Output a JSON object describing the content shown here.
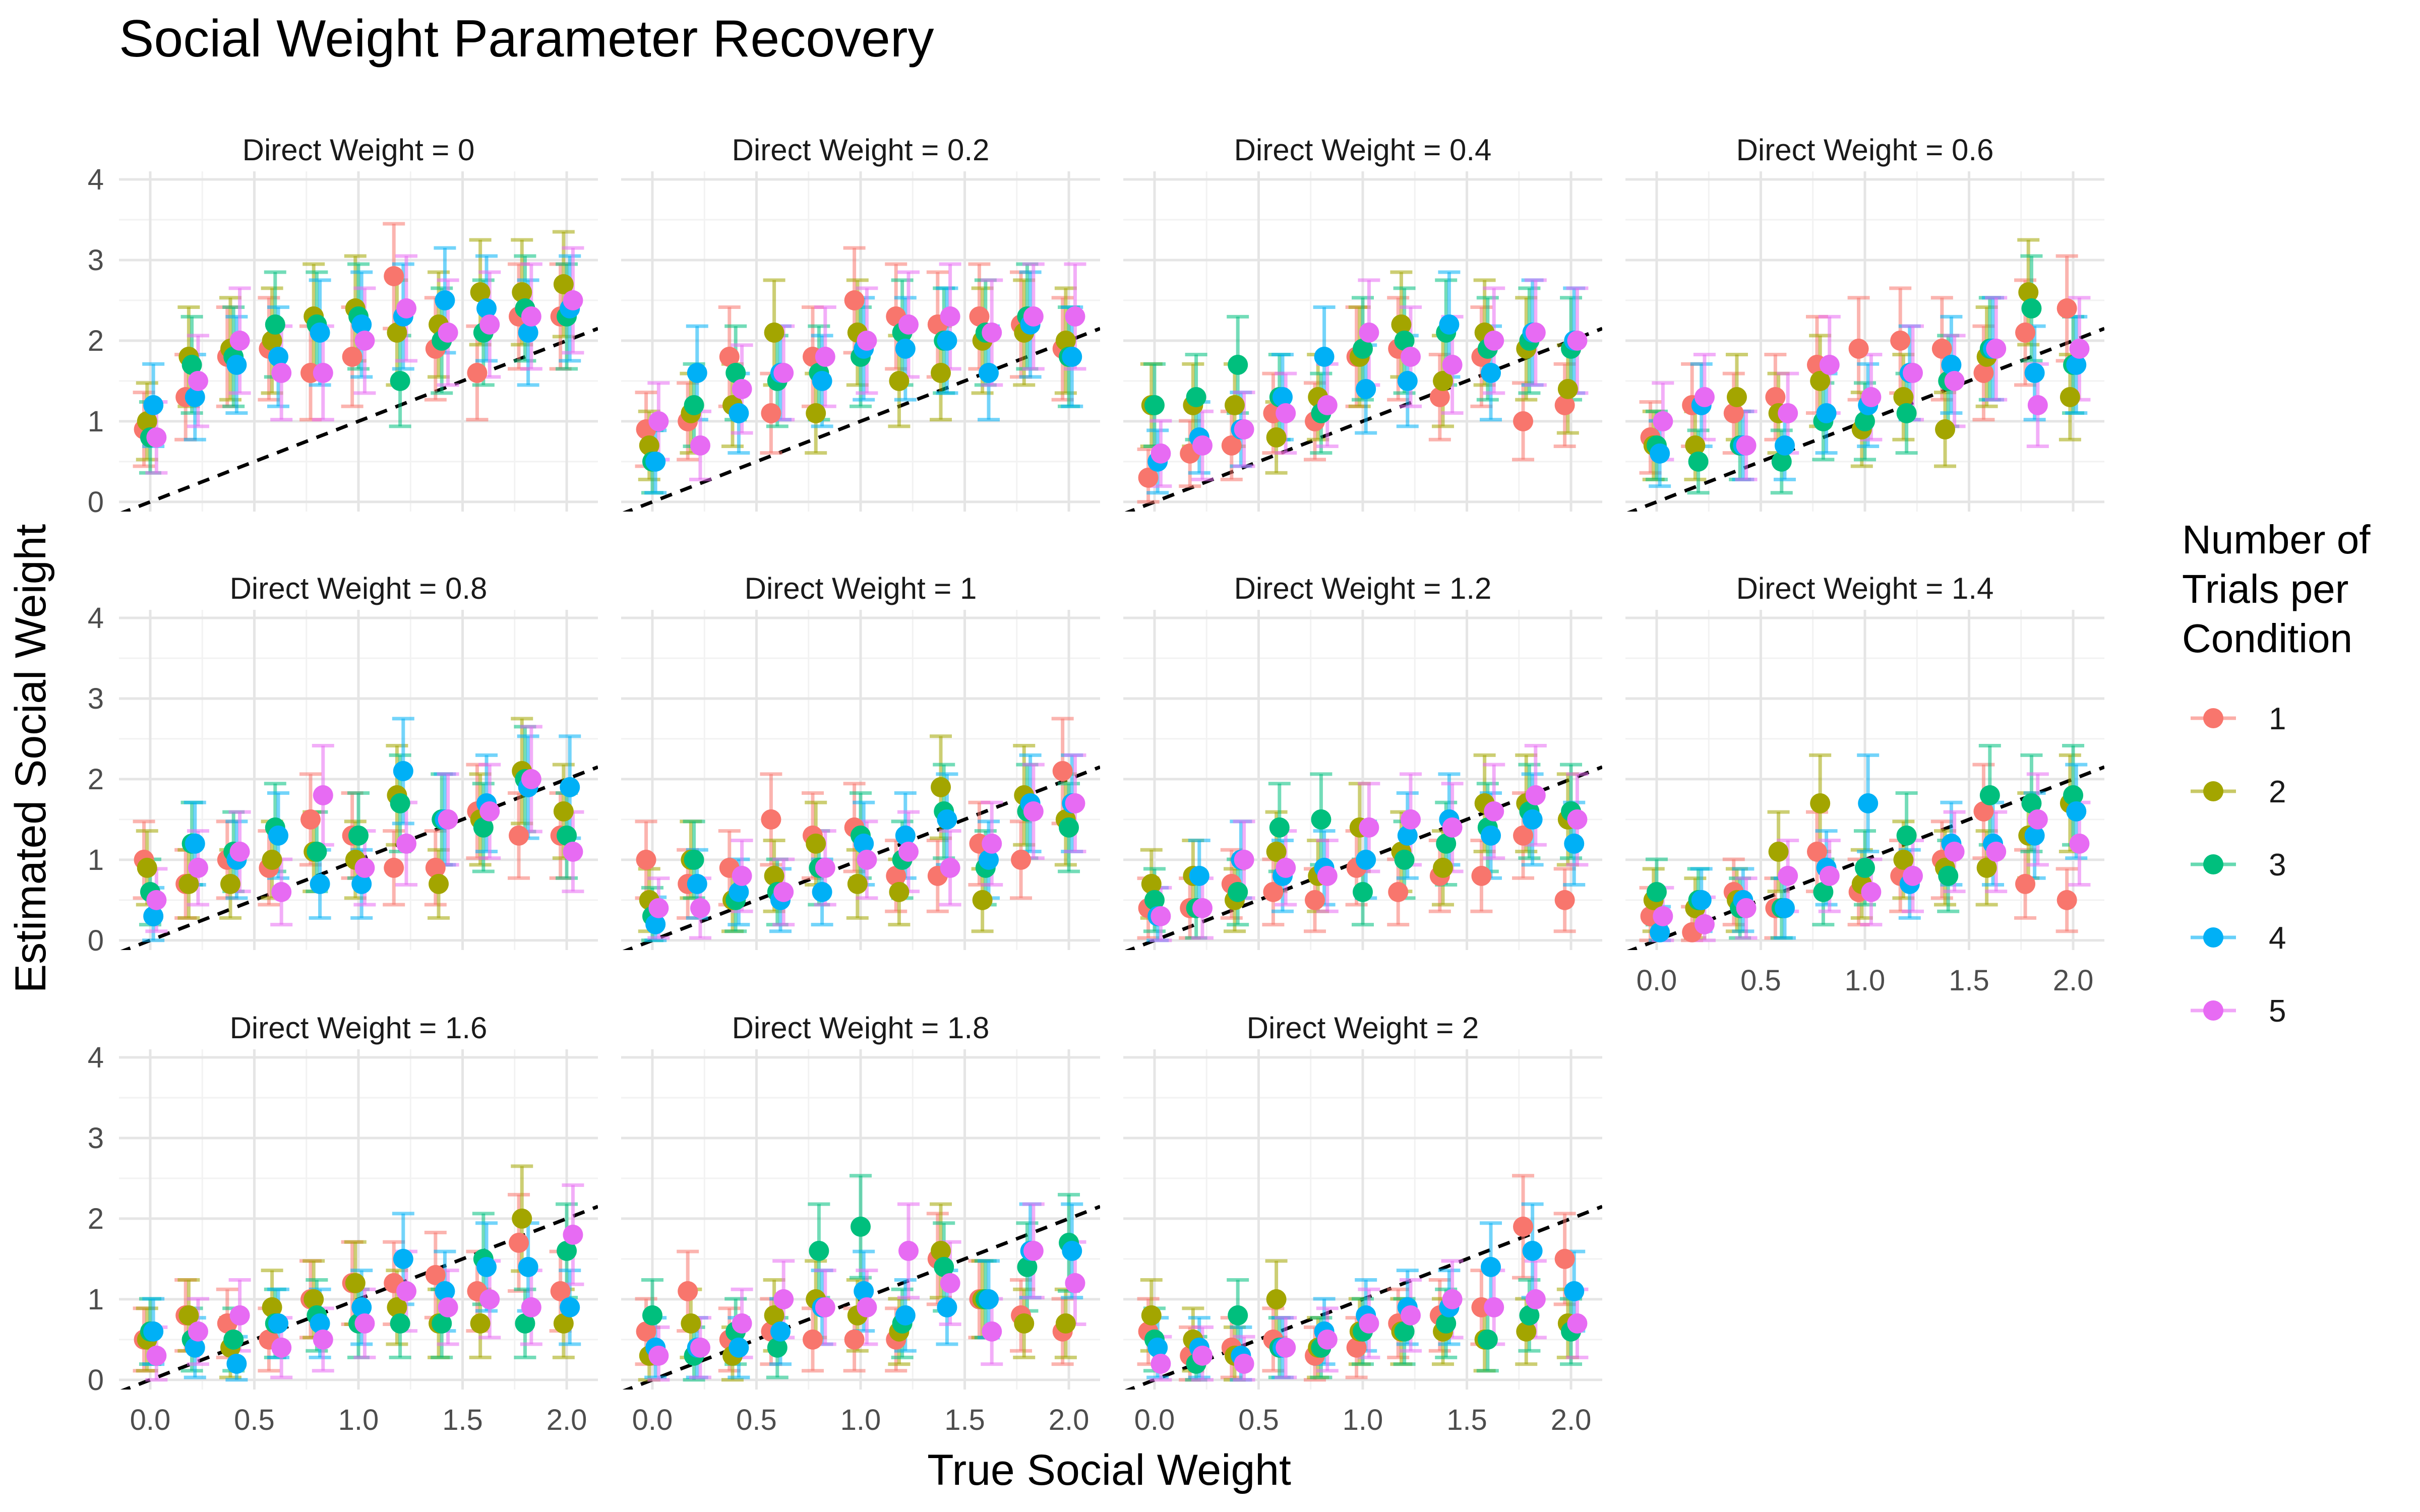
{
  "chart_data": {
    "type": "scatter",
    "title": "Social Weight Parameter Recovery",
    "xlabel": "True Social Weight",
    "ylabel": "Estimated Social Weight",
    "xlim": [
      -0.15,
      2.15
    ],
    "ylim": [
      -0.12,
      4.1
    ],
    "x_ticks": [
      "0.0",
      "0.5",
      "1.0",
      "1.5",
      "2.0"
    ],
    "y_ticks": [
      "0",
      "1",
      "2",
      "3",
      "4"
    ],
    "x_tick_values": [
      0,
      0.5,
      1,
      1.5,
      2
    ],
    "y_tick_values": [
      0,
      1,
      2,
      3,
      4
    ],
    "grid": true,
    "reference_line": "dashed identity line y = x",
    "legend": {
      "title": "Number of\nTrials per\nCondition",
      "position": "right",
      "items": [
        {
          "label": "1",
          "color": "#F8766D"
        },
        {
          "label": "2",
          "color": "#A3A500"
        },
        {
          "label": "3",
          "color": "#00BF7D"
        },
        {
          "label": "4",
          "color": "#00B0F6"
        },
        {
          "label": "5",
          "color": "#E76BF3"
        }
      ]
    },
    "x": [
      0,
      0.2,
      0.4,
      0.6,
      0.8,
      1.0,
      1.2,
      1.4,
      1.6,
      1.8,
      2.0
    ],
    "panels": [
      {
        "label": "Direct Weight = 0",
        "series": [
          {
            "name": "1",
            "values": [
              0.9,
              1.3,
              1.8,
              1.9,
              1.6,
              1.8,
              2.8,
              1.9,
              1.6,
              2.3,
              2.3
            ]
          },
          {
            "name": "2",
            "values": [
              1.0,
              1.8,
              1.9,
              2.0,
              2.3,
              2.4,
              2.1,
              2.2,
              2.6,
              2.6,
              2.7
            ]
          },
          {
            "name": "3",
            "values": [
              0.8,
              1.7,
              1.8,
              2.2,
              2.2,
              2.3,
              1.5,
              2.0,
              2.1,
              2.4,
              2.3
            ]
          },
          {
            "name": "4",
            "values": [
              1.2,
              1.3,
              1.7,
              1.8,
              2.1,
              2.2,
              2.3,
              2.5,
              2.4,
              2.1,
              2.4
            ]
          },
          {
            "name": "5",
            "values": [
              0.8,
              1.5,
              2.0,
              1.6,
              1.6,
              2.0,
              2.4,
              2.1,
              2.2,
              2.3,
              2.5
            ]
          }
        ]
      },
      {
        "label": "Direct Weight = 0.2",
        "series": [
          {
            "name": "1",
            "values": [
              0.9,
              1.0,
              1.8,
              1.1,
              1.8,
              2.5,
              2.3,
              2.2,
              2.3,
              2.2,
              1.9
            ]
          },
          {
            "name": "2",
            "values": [
              0.7,
              1.1,
              1.2,
              2.1,
              1.1,
              2.1,
              1.5,
              1.6,
              2.0,
              2.1,
              2.0
            ]
          },
          {
            "name": "3",
            "values": [
              0.5,
              1.2,
              1.6,
              1.5,
              1.6,
              1.8,
              2.1,
              2.0,
              2.1,
              2.3,
              1.8
            ]
          },
          {
            "name": "4",
            "values": [
              0.5,
              1.6,
              1.1,
              1.6,
              1.5,
              1.9,
              1.9,
              2.0,
              1.6,
              2.2,
              1.8
            ]
          },
          {
            "name": "5",
            "values": [
              1.0,
              0.7,
              1.4,
              1.6,
              1.8,
              2.0,
              2.2,
              2.3,
              2.1,
              2.3,
              2.3
            ]
          }
        ]
      },
      {
        "label": "Direct Weight = 0.4",
        "series": [
          {
            "name": "1",
            "values": [
              0.3,
              0.6,
              0.7,
              1.1,
              1.0,
              1.8,
              1.9,
              1.3,
              1.8,
              1.0,
              1.2
            ]
          },
          {
            "name": "2",
            "values": [
              1.2,
              1.2,
              1.2,
              0.8,
              1.3,
              1.8,
              2.2,
              1.5,
              2.1,
              1.9,
              1.4
            ]
          },
          {
            "name": "3",
            "values": [
              1.2,
              1.3,
              1.7,
              1.3,
              1.1,
              1.9,
              2.0,
              2.1,
              1.9,
              2.0,
              1.9
            ]
          },
          {
            "name": "4",
            "values": [
              0.5,
              0.8,
              0.9,
              1.3,
              1.8,
              1.4,
              1.5,
              2.2,
              1.6,
              2.1,
              2.0
            ]
          },
          {
            "name": "5",
            "values": [
              0.6,
              0.7,
              0.9,
              1.1,
              1.2,
              2.1,
              1.8,
              1.7,
              2.0,
              2.1,
              2.0
            ]
          }
        ]
      },
      {
        "label": "Direct Weight = 0.6",
        "series": [
          {
            "name": "1",
            "values": [
              0.8,
              1.2,
              1.1,
              1.3,
              1.7,
              1.9,
              2.0,
              1.9,
              1.6,
              2.1,
              2.4
            ]
          },
          {
            "name": "2",
            "values": [
              0.7,
              0.7,
              1.3,
              1.1,
              1.5,
              0.9,
              1.3,
              0.9,
              1.8,
              2.6,
              1.3
            ]
          },
          {
            "name": "3",
            "values": [
              0.7,
              0.5,
              0.7,
              0.5,
              1.0,
              1.0,
              1.1,
              1.5,
              1.9,
              2.4,
              1.7
            ]
          },
          {
            "name": "4",
            "values": [
              0.6,
              1.2,
              0.7,
              0.7,
              1.1,
              1.2,
              1.6,
              1.7,
              1.9,
              1.6,
              1.7
            ]
          },
          {
            "name": "5",
            "values": [
              1.0,
              1.3,
              0.7,
              1.1,
              1.7,
              1.3,
              1.6,
              1.5,
              1.9,
              1.2,
              1.9
            ]
          }
        ]
      },
      {
        "label": "Direct Weight = 0.8",
        "series": [
          {
            "name": "1",
            "values": [
              1.0,
              0.7,
              1.0,
              0.9,
              1.5,
              1.3,
              0.9,
              0.9,
              1.6,
              1.3,
              1.3
            ]
          },
          {
            "name": "2",
            "values": [
              0.9,
              0.7,
              0.7,
              1.0,
              1.1,
              1.0,
              1.8,
              0.7,
              1.5,
              2.1,
              1.6
            ]
          },
          {
            "name": "3",
            "values": [
              0.6,
              1.2,
              1.1,
              1.4,
              1.1,
              1.3,
              1.7,
              1.5,
              1.4,
              2.0,
              1.3
            ]
          },
          {
            "name": "4",
            "values": [
              0.3,
              1.2,
              1.0,
              1.3,
              0.7,
              0.7,
              2.1,
              1.5,
              1.7,
              1.9,
              1.9
            ]
          },
          {
            "name": "5",
            "values": [
              0.5,
              0.9,
              1.1,
              0.6,
              1.8,
              0.9,
              1.2,
              1.5,
              1.6,
              2.0,
              1.1
            ]
          }
        ]
      },
      {
        "label": "Direct Weight = 1",
        "series": [
          {
            "name": "1",
            "values": [
              1.0,
              0.7,
              0.9,
              1.5,
              1.3,
              1.4,
              0.8,
              0.8,
              1.2,
              1.0,
              2.1
            ]
          },
          {
            "name": "2",
            "values": [
              0.5,
              1.0,
              0.5,
              0.8,
              1.2,
              0.7,
              0.6,
              1.9,
              0.5,
              1.8,
              1.5
            ]
          },
          {
            "name": "3",
            "values": [
              0.3,
              1.0,
              0.5,
              0.6,
              0.9,
              1.3,
              1.0,
              1.6,
              0.9,
              1.6,
              1.4
            ]
          },
          {
            "name": "4",
            "values": [
              0.2,
              0.7,
              0.6,
              0.5,
              0.6,
              1.2,
              1.3,
              1.5,
              1.0,
              1.7,
              1.7
            ]
          },
          {
            "name": "5",
            "values": [
              0.4,
              0.4,
              0.8,
              0.6,
              0.9,
              1.0,
              1.1,
              0.9,
              1.2,
              1.6,
              1.7
            ]
          }
        ]
      },
      {
        "label": "Direct Weight = 1.2",
        "series": [
          {
            "name": "1",
            "values": [
              0.4,
              0.4,
              0.7,
              0.6,
              0.5,
              0.9,
              0.6,
              0.8,
              0.8,
              1.3,
              0.5
            ]
          },
          {
            "name": "2",
            "values": [
              0.7,
              0.8,
              0.5,
              1.1,
              0.8,
              1.4,
              1.1,
              0.9,
              1.7,
              1.7,
              1.5
            ]
          },
          {
            "name": "3",
            "values": [
              0.5,
              0.4,
              0.6,
              1.4,
              1.5,
              0.6,
              1.0,
              1.2,
              1.4,
              1.6,
              1.6
            ]
          },
          {
            "name": "4",
            "values": [
              0.3,
              0.8,
              1.0,
              0.8,
              0.9,
              1.0,
              1.3,
              1.5,
              1.3,
              1.5,
              1.2
            ]
          },
          {
            "name": "5",
            "values": [
              0.3,
              0.4,
              1.0,
              0.9,
              0.8,
              1.4,
              1.5,
              1.4,
              1.6,
              1.8,
              1.5
            ]
          }
        ]
      },
      {
        "label": "Direct Weight = 1.4",
        "series": [
          {
            "name": "1",
            "values": [
              0.3,
              0.1,
              0.6,
              0.4,
              1.1,
              0.6,
              0.8,
              1.0,
              1.6,
              0.7,
              0.5
            ]
          },
          {
            "name": "2",
            "values": [
              0.5,
              0.4,
              0.5,
              1.1,
              1.7,
              0.7,
              1.0,
              0.9,
              0.9,
              1.3,
              1.7
            ]
          },
          {
            "name": "3",
            "values": [
              0.6,
              0.5,
              0.4,
              0.4,
              0.6,
              0.9,
              1.3,
              0.8,
              1.8,
              1.7,
              1.8
            ]
          },
          {
            "name": "4",
            "values": [
              0.1,
              0.5,
              0.5,
              0.4,
              0.9,
              1.7,
              0.7,
              1.2,
              1.2,
              1.3,
              1.6
            ]
          },
          {
            "name": "5",
            "values": [
              0.3,
              0.2,
              0.4,
              0.8,
              0.8,
              0.6,
              0.8,
              1.1,
              1.1,
              1.5,
              1.2
            ]
          }
        ]
      },
      {
        "label": "Direct Weight = 1.6",
        "series": [
          {
            "name": "1",
            "values": [
              0.5,
              0.8,
              0.7,
              0.5,
              1.0,
              1.2,
              1.2,
              1.3,
              1.1,
              1.7,
              1.1
            ]
          },
          {
            "name": "2",
            "values": [
              0.5,
              0.8,
              0.4,
              0.9,
              1.0,
              1.2,
              0.9,
              0.7,
              0.7,
              2.0,
              0.7
            ]
          },
          {
            "name": "3",
            "values": [
              0.6,
              0.5,
              0.5,
              0.7,
              0.8,
              0.7,
              0.7,
              0.7,
              1.5,
              0.7,
              1.6
            ]
          },
          {
            "name": "4",
            "values": [
              0.6,
              0.4,
              0.2,
              0.7,
              0.7,
              0.9,
              1.5,
              1.1,
              1.4,
              1.4,
              0.9
            ]
          },
          {
            "name": "5",
            "values": [
              0.3,
              0.6,
              0.8,
              0.4,
              0.5,
              0.7,
              1.1,
              0.9,
              1.0,
              0.9,
              1.8
            ]
          }
        ]
      },
      {
        "label": "Direct Weight = 1.8",
        "series": [
          {
            "name": "1",
            "values": [
              0.6,
              1.1,
              0.5,
              0.6,
              0.5,
              0.5,
              0.5,
              1.5,
              1.0,
              0.8,
              0.6
            ]
          },
          {
            "name": "2",
            "values": [
              0.3,
              0.7,
              0.3,
              0.8,
              1.0,
              0.8,
              0.6,
              1.6,
              1.0,
              0.7,
              0.7
            ]
          },
          {
            "name": "3",
            "values": [
              0.8,
              0.3,
              0.6,
              0.4,
              1.6,
              1.9,
              0.7,
              1.4,
              1.0,
              1.4,
              1.7
            ]
          },
          {
            "name": "4",
            "values": [
              0.4,
              0.4,
              0.4,
              0.6,
              0.9,
              1.1,
              0.8,
              0.9,
              1.0,
              1.6,
              1.6
            ]
          },
          {
            "name": "5",
            "values": [
              0.3,
              0.4,
              0.7,
              1.0,
              0.9,
              0.9,
              1.6,
              1.2,
              0.6,
              1.6,
              1.2
            ]
          }
        ]
      },
      {
        "label": "Direct Weight = 2",
        "series": [
          {
            "name": "1",
            "values": [
              0.6,
              0.3,
              0.4,
              0.5,
              0.3,
              0.4,
              0.7,
              0.8,
              0.9,
              1.9,
              1.5
            ]
          },
          {
            "name": "2",
            "values": [
              0.8,
              0.5,
              0.3,
              1.0,
              0.4,
              0.6,
              0.6,
              0.6,
              0.5,
              0.6,
              0.7
            ]
          },
          {
            "name": "3",
            "values": [
              0.5,
              0.2,
              0.8,
              0.4,
              0.4,
              0.6,
              0.6,
              0.7,
              0.5,
              0.8,
              0.6
            ]
          },
          {
            "name": "4",
            "values": [
              0.4,
              0.4,
              0.3,
              0.4,
              0.6,
              0.8,
              0.9,
              0.9,
              1.4,
              1.6,
              1.1
            ]
          },
          {
            "name": "5",
            "values": [
              0.2,
              0.3,
              0.2,
              0.4,
              0.5,
              0.7,
              0.8,
              1.0,
              0.9,
              1.0,
              0.7
            ]
          }
        ]
      }
    ]
  }
}
